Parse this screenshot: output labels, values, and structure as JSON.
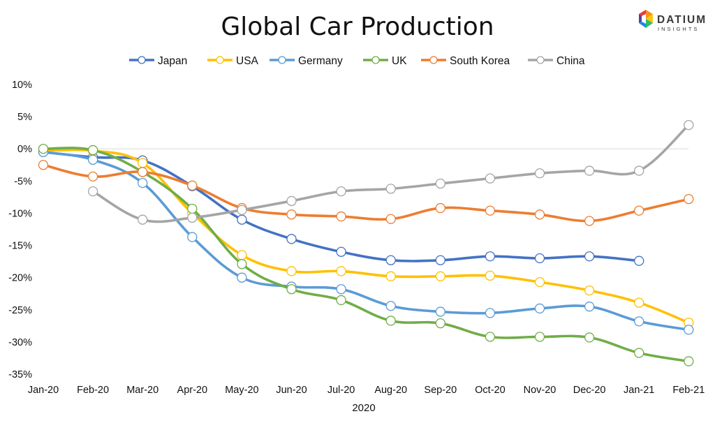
{
  "brand": {
    "name": "DATIUM",
    "tagline": "INSIGHTS",
    "colors": [
      "#e73c3c",
      "#f7941d",
      "#f9c80e",
      "#2dbd6e",
      "#1e88e5",
      "#5c3d99"
    ]
  },
  "chart_data": {
    "type": "line",
    "title": "Global Car Production",
    "xlabel": "2020",
    "ylabel": "",
    "categories": [
      "Jan-20",
      "Feb-20",
      "Mar-20",
      "Apr-20",
      "May-20",
      "Jun-20",
      "Jul-20",
      "Aug-20",
      "Sep-20",
      "Oct-20",
      "Nov-20",
      "Dec-20",
      "Jan-21",
      "Feb-21"
    ],
    "yticks": [
      "10%",
      "5%",
      "0%",
      "-5%",
      "-10%",
      "-15%",
      "-20%",
      "-25%",
      "-30%",
      "-35%"
    ],
    "ylim": [
      -35,
      10
    ],
    "legend_position": "top",
    "gridlines": "zero line only",
    "series": [
      {
        "name": "Japan",
        "color": "#4472c4",
        "values": [
          -0.5,
          -1.3,
          -1.8,
          -5.8,
          -11.0,
          -14.0,
          -16.0,
          -17.3,
          -17.3,
          -16.7,
          -17.0,
          -16.7,
          -17.4,
          null
        ]
      },
      {
        "name": "USA",
        "color": "#ffc000",
        "values": [
          -0.3,
          -0.3,
          -2.2,
          -10.0,
          -16.5,
          -19.0,
          -19.0,
          -19.8,
          -19.8,
          -19.7,
          -20.7,
          -22.0,
          -23.9,
          -27.0
        ]
      },
      {
        "name": "Germany",
        "color": "#5b9bd5",
        "values": [
          -0.5,
          -1.7,
          -5.3,
          -13.7,
          -20.0,
          -21.4,
          -21.8,
          -24.4,
          -25.3,
          -25.5,
          -24.8,
          -24.5,
          -26.8,
          -28.1
        ]
      },
      {
        "name": "UK",
        "color": "#70ad47",
        "values": [
          0.0,
          -0.2,
          -3.6,
          -9.3,
          -17.9,
          -21.8,
          -23.5,
          -26.7,
          -27.1,
          -29.2,
          -29.2,
          -29.3,
          -31.7,
          -33.0
        ]
      },
      {
        "name": "South Korea",
        "color": "#ed7d31",
        "values": [
          -2.5,
          -4.3,
          -3.6,
          -5.7,
          -9.2,
          -10.2,
          -10.5,
          -10.9,
          -9.2,
          -9.6,
          -10.2,
          -11.2,
          -9.6,
          -7.8
        ]
      },
      {
        "name": "China",
        "color": "#a5a5a5",
        "values": [
          null,
          -6.6,
          -11.0,
          -10.7,
          -9.5,
          -8.1,
          -6.6,
          -6.2,
          -5.4,
          -4.6,
          -3.8,
          -3.4,
          -3.4,
          3.7
        ]
      }
    ]
  }
}
